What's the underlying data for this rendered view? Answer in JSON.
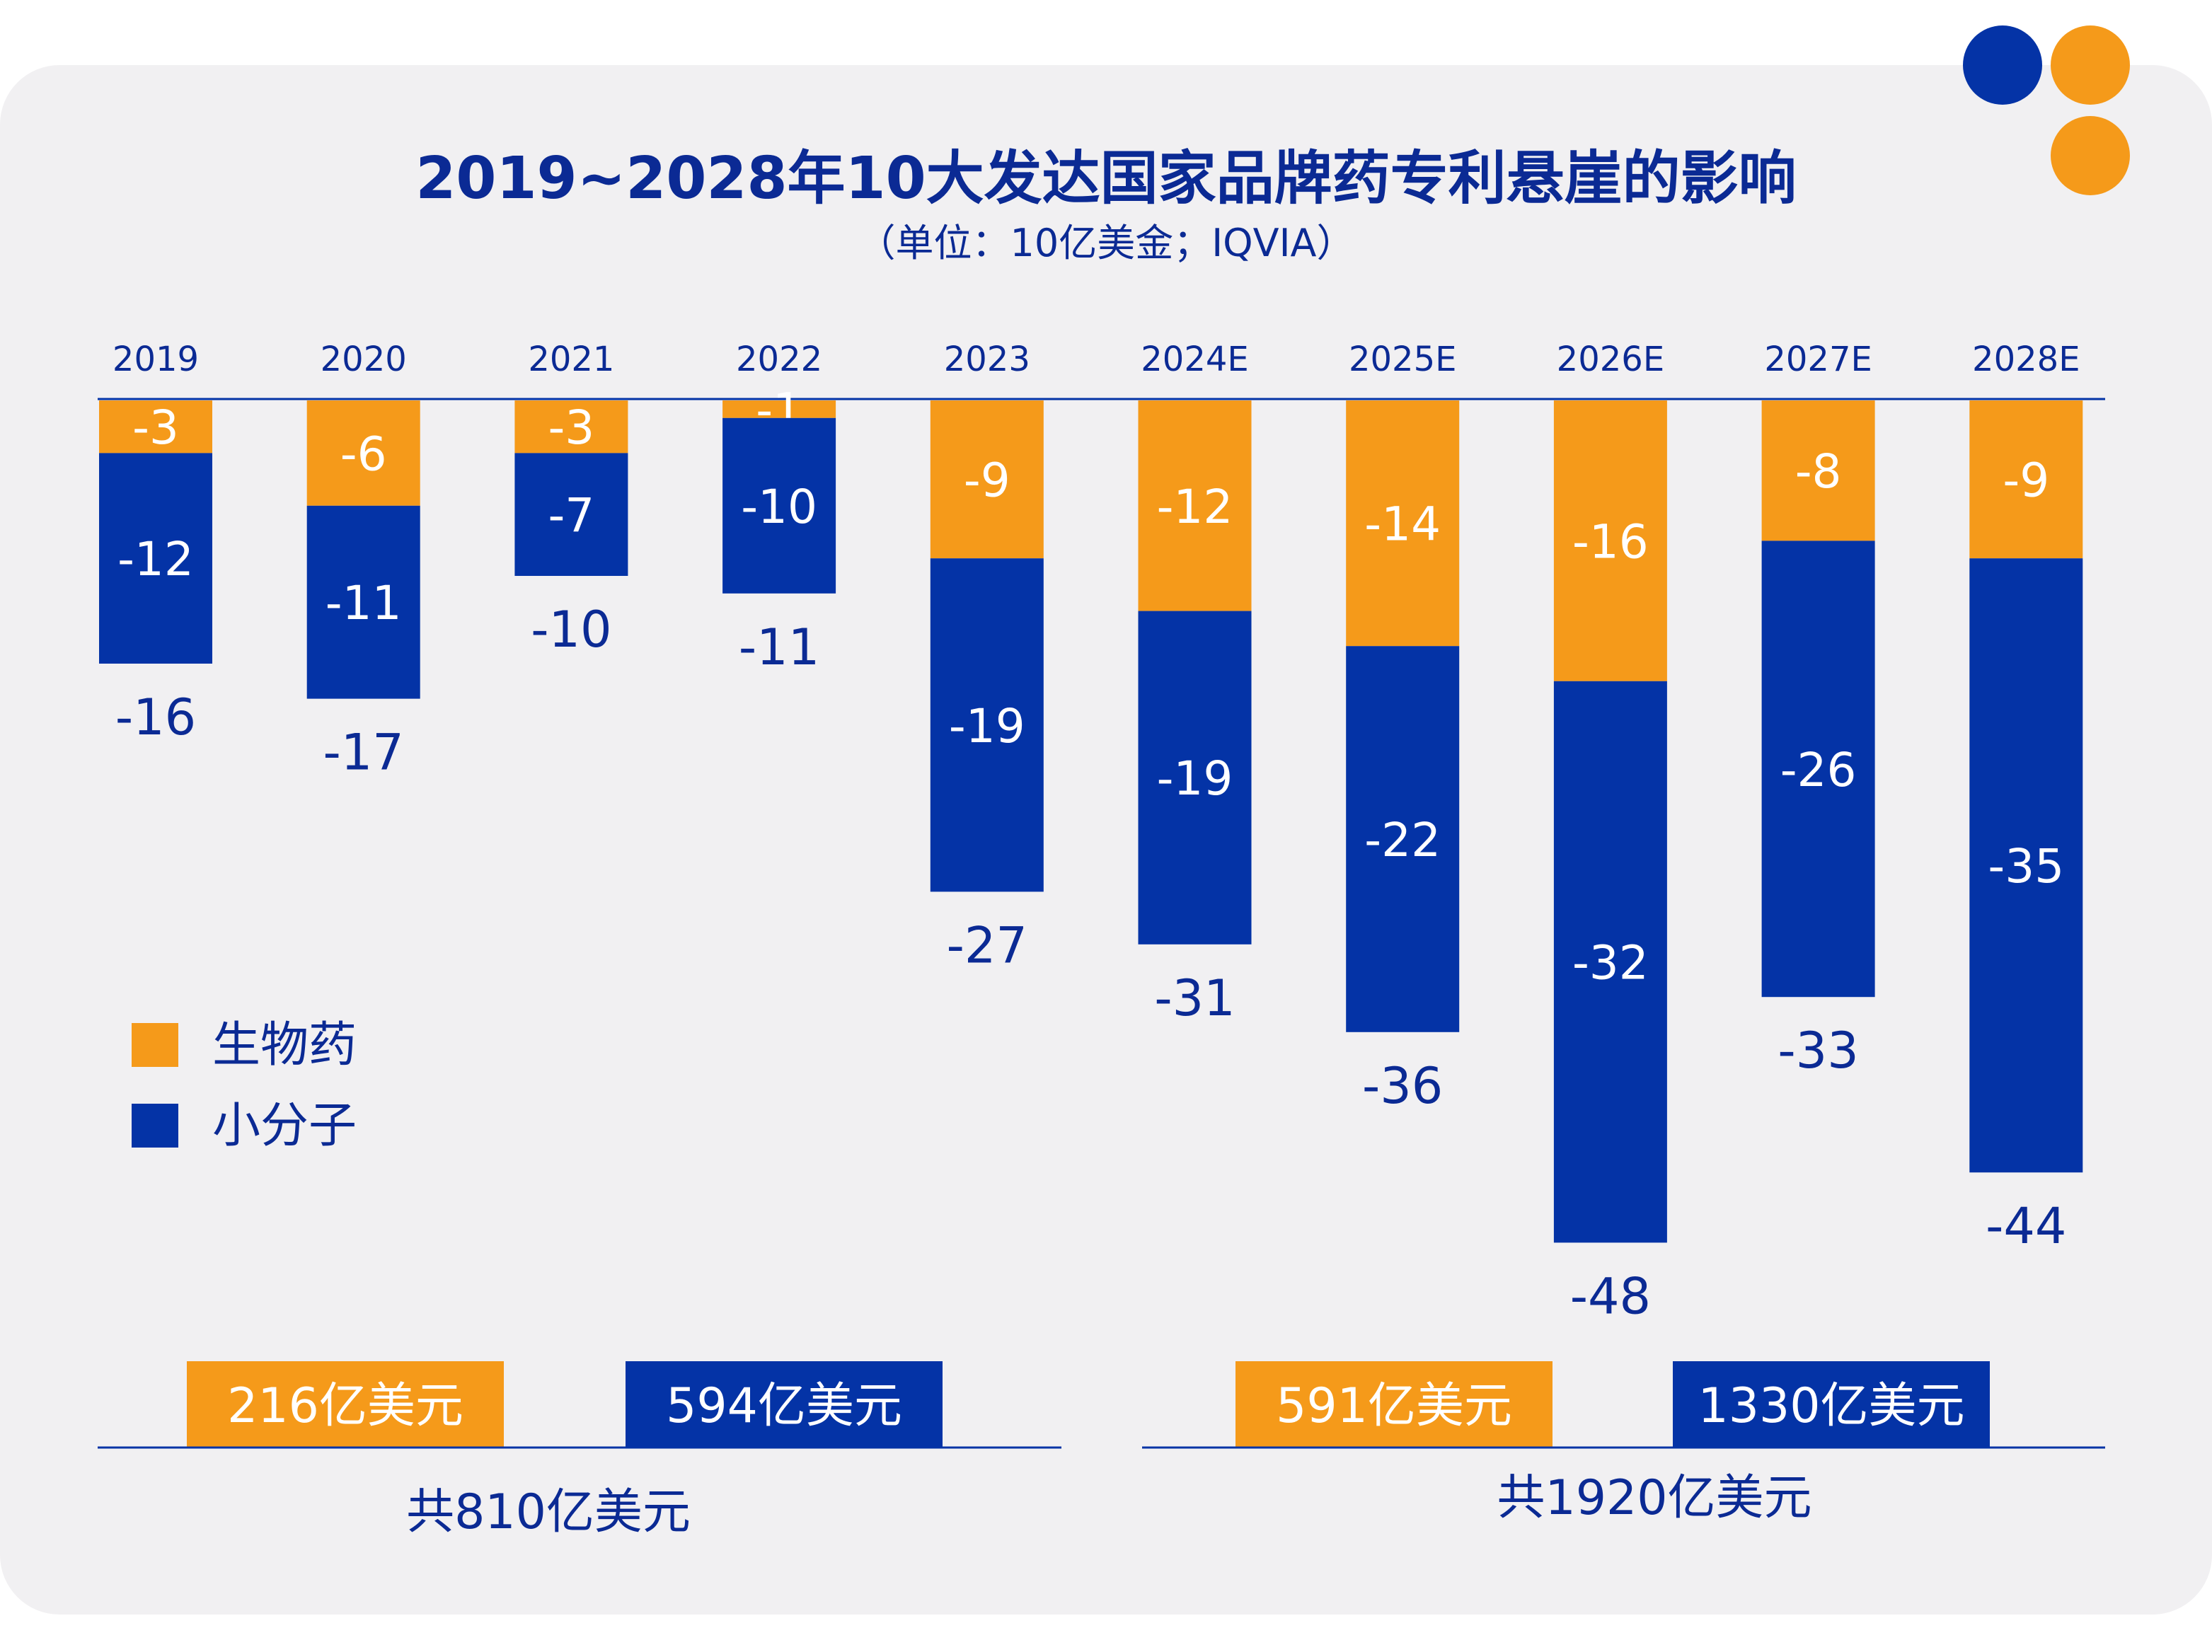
{
  "title": "2019~2028年10大发达国家品牌药专利悬崖的影响",
  "subtitle": "（单位：10亿美金；IQVIA）",
  "colors": {
    "bio": "#f59a1a",
    "small": "#0433a6",
    "text": "#0b2a94",
    "background": "#f1f0f2"
  },
  "chart_data": {
    "type": "bar",
    "stacked": true,
    "categories": [
      "2019",
      "2020",
      "2021",
      "2022",
      "2023",
      "2024E",
      "2025E",
      "2026E",
      "2027E",
      "2028E"
    ],
    "series": [
      {
        "name": "生物药",
        "values": [
          -3,
          -6,
          -3,
          -1,
          -9,
          -12,
          -14,
          -16,
          -8,
          -9
        ]
      },
      {
        "name": "小分子",
        "values": [
          -12,
          -11,
          -7,
          -10,
          -19,
          -19,
          -22,
          -32,
          -26,
          -35
        ]
      }
    ],
    "totals": [
      -16,
      -17,
      -10,
      -11,
      -27,
      -31,
      -36,
      -48,
      -33,
      -44
    ],
    "legend": [
      "生物药",
      "小分子"
    ],
    "legend_position": "left"
  },
  "summary": {
    "left": {
      "bio": "216亿美元",
      "small": "594亿美元",
      "total": "共810亿美元"
    },
    "right": {
      "bio": "591亿美元",
      "small": "1330亿美元",
      "total": "共1920亿美元"
    }
  }
}
